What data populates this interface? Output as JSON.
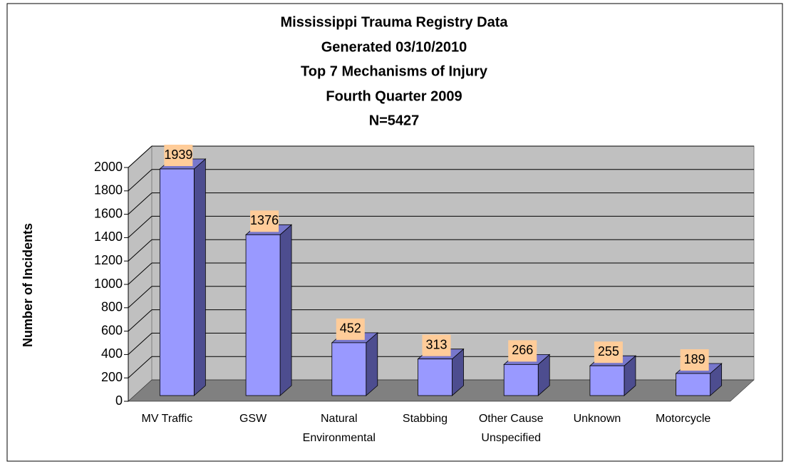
{
  "chart_data": {
    "type": "bar3d",
    "title": "Mississippi Trauma Registry Data",
    "subtitle": [
      "Generated 03/10/2010",
      "Top 7 Mechanisms of Injury",
      "Fourth Quarter 2009",
      "N=5427"
    ],
    "y_label": "Number of Incidents",
    "categories": [
      "MV Traffic",
      "GSW",
      "Natural\nEnvironmental",
      "Stabbing",
      "Other Cause\nUnspecified",
      "Unknown",
      "Motorcycle"
    ],
    "values": [
      1939,
      1376,
      452,
      313,
      266,
      255,
      189
    ],
    "color": "#9999ff",
    "ylim": [
      0,
      2000
    ],
    "yticks": [
      0,
      200,
      400,
      600,
      800,
      1000,
      1200,
      1400,
      1600,
      1800,
      2000
    ],
    "grid": true
  }
}
